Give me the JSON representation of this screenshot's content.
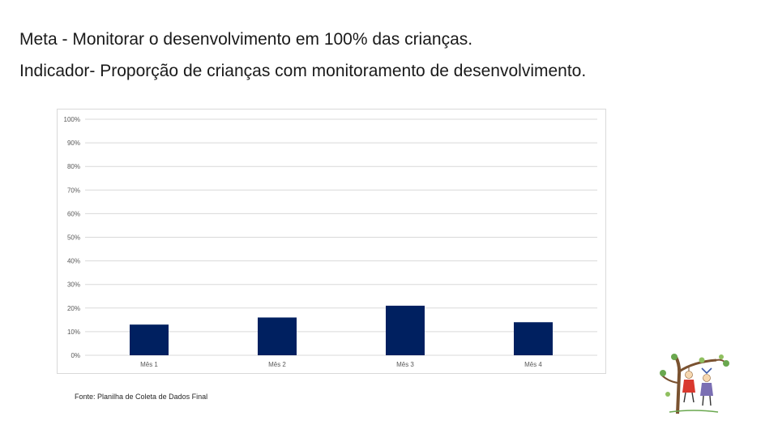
{
  "slide": {
    "title_line_1": "Meta - Monitorar o desenvolvimento em 100% das crianças.",
    "title_line_2": "Indicador- Proporção de crianças com monitoramento de desenvolvimento.",
    "source_note": "Fonte: Planilha de Coleta de Dados Final"
  },
  "colors": {
    "bar": "#002060",
    "gridline": "#d9d9d9",
    "axis_text": "#595959"
  },
  "chart_data": {
    "type": "bar",
    "title": "",
    "xlabel": "",
    "ylabel": "",
    "categories": [
      "Mês 1",
      "Mês 2",
      "Mês 3",
      "Mês 4"
    ],
    "values": [
      13,
      16,
      21,
      14
    ],
    "ylim": [
      0,
      100
    ],
    "yticks": [
      0,
      10,
      20,
      30,
      40,
      50,
      60,
      70,
      80,
      90,
      100
    ],
    "ytick_labels": [
      "0%",
      "10%",
      "20%",
      "30%",
      "40%",
      "50%",
      "60%",
      "70%",
      "80%",
      "90%",
      "100%"
    ],
    "grid": true,
    "legend": "none"
  },
  "decoration": {
    "illustration": "children-playing-tree-drawing"
  }
}
